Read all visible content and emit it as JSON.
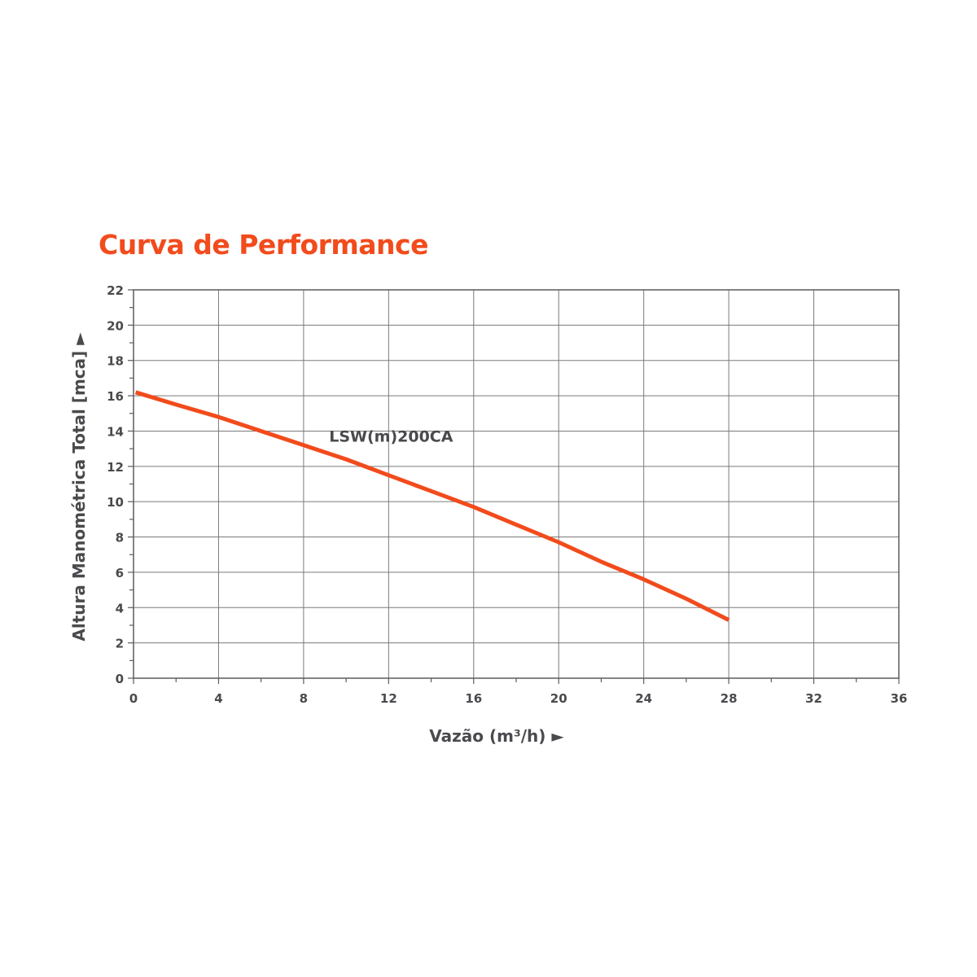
{
  "colors": {
    "accent": "#f24b1c",
    "text": "#4a4a4e",
    "grid": "#7a7a7e",
    "frame": "#5c5c60"
  },
  "chart_data": {
    "type": "line",
    "title": "Curva de Performance",
    "xlabel": "Vazão (m³/h) ►",
    "ylabel": "Altura Manométrica Total [mca] ►",
    "xlim": [
      0,
      36
    ],
    "ylim": [
      0,
      22
    ],
    "x_major_ticks": [
      0,
      4,
      8,
      12,
      16,
      20,
      24,
      28,
      32,
      36
    ],
    "y_major_ticks": [
      0,
      2,
      4,
      6,
      8,
      10,
      12,
      14,
      16,
      18,
      20,
      22
    ],
    "x_minor_step": 2,
    "y_minor_step": 1,
    "grid": true,
    "series": [
      {
        "name": "LSW(m)200CA",
        "x": [
          0.1,
          2,
          4,
          6,
          8,
          10,
          12,
          14,
          16,
          18,
          20,
          22,
          24,
          26,
          28
        ],
        "y": [
          16.2,
          15.5,
          14.8,
          14.0,
          13.2,
          12.4,
          11.5,
          10.6,
          9.7,
          8.7,
          7.7,
          6.6,
          5.6,
          4.5,
          3.3
        ]
      }
    ]
  }
}
